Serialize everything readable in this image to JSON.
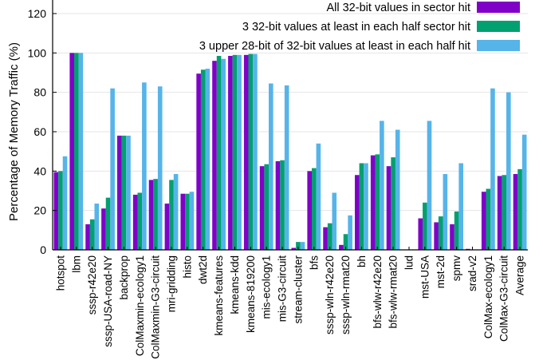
{
  "chart_data": {
    "type": "bar",
    "ylabel": "Percentage of Memory Traffic (%)",
    "xlabel": "",
    "ylim": [
      0,
      120
    ],
    "yticks": [
      0,
      20,
      40,
      60,
      80,
      100,
      120
    ],
    "grid": "horizontal",
    "legend_position": "top-right",
    "categories": [
      "hotspot",
      "lbm",
      "sssp-r42e20",
      "sssp-USA-road-NY",
      "backprop",
      "ColMaxmin-ecology1",
      "ColMaxmin-G3-circuit",
      "mri-gridding",
      "histo",
      "dwt2d",
      "kmeans-features",
      "kmeans-kdd",
      "kmeans-819200",
      "mis-ecology1",
      "mis-G3-circuit",
      "stream-cluster",
      "bfs",
      "sssp-wln-r42e20",
      "sssp-wln-rmat20",
      "bh",
      "bfs-wlw-r42e20",
      "bfs-wlw-rmat20",
      "lud",
      "mst-USA",
      "mst-2d",
      "spmv",
      "srad-v2",
      "ColMax-ecology1",
      "ColMax-G3-circuit",
      "Average"
    ],
    "series": [
      {
        "name": "All 32-bit values in sector hit",
        "color": "#8000c8",
        "values": [
          39.5,
          100,
          13,
          21,
          58,
          28,
          35.5,
          23.5,
          28.5,
          89.5,
          96,
          98.5,
          99,
          42.5,
          45,
          1,
          40,
          11.5,
          2.5,
          38,
          48,
          42.5,
          0,
          16,
          14,
          13,
          0.5,
          29.5,
          37.5,
          38.5
        ]
      },
      {
        "name": "3 32-bit values at least in each half sector hit",
        "color": "#00a070",
        "values": [
          40,
          100,
          15.5,
          26.5,
          58,
          29,
          36,
          35.5,
          28.5,
          91.5,
          98.5,
          99,
          99.5,
          43.5,
          45.5,
          4,
          41.5,
          13.5,
          8,
          44,
          48.5,
          47,
          0,
          24,
          17,
          19.5,
          0,
          31,
          38,
          41
        ]
      },
      {
        "name": "3 upper 28-bit of 32-bit values at least in each half hit",
        "color": "#56b4e9",
        "values": [
          47.5,
          100,
          23.5,
          82,
          58,
          85,
          83,
          38.5,
          29.5,
          92,
          97,
          99,
          99.5,
          84.5,
          83.5,
          4,
          54,
          29,
          17.5,
          44,
          65.5,
          61,
          0,
          65.5,
          38.5,
          44,
          0,
          82,
          80,
          58.5
        ]
      }
    ]
  }
}
